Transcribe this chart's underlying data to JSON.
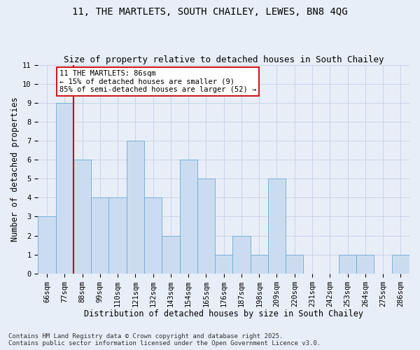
{
  "title1": "11, THE MARTLETS, SOUTH CHAILEY, LEWES, BN8 4QG",
  "title2": "Size of property relative to detached houses in South Chailey",
  "xlabel": "Distribution of detached houses by size in South Chailey",
  "ylabel": "Number of detached properties",
  "categories": [
    "66sqm",
    "77sqm",
    "88sqm",
    "99sqm",
    "110sqm",
    "121sqm",
    "132sqm",
    "143sqm",
    "154sqm",
    "165sqm",
    "176sqm",
    "187sqm",
    "198sqm",
    "209sqm",
    "220sqm",
    "231sqm",
    "242sqm",
    "253sqm",
    "264sqm",
    "275sqm",
    "286sqm"
  ],
  "values": [
    3,
    9,
    6,
    4,
    4,
    7,
    4,
    2,
    6,
    5,
    1,
    2,
    1,
    5,
    1,
    0,
    0,
    1,
    1,
    0,
    1
  ],
  "bar_color": "#ccdcf0",
  "bar_edge_color": "#6aaad4",
  "red_line_index": 2,
  "annotation_line1": "11 THE MARTLETS: 86sqm",
  "annotation_line2": "← 15% of detached houses are smaller (9)",
  "annotation_line3": "85% of semi-detached houses are larger (52) →",
  "annotation_box_color": "#ffffff",
  "annotation_box_edge_color": "#cc0000",
  "red_line_color": "#cc0000",
  "ylim": [
    0,
    11
  ],
  "yticks": [
    0,
    1,
    2,
    3,
    4,
    5,
    6,
    7,
    8,
    9,
    10,
    11
  ],
  "grid_color": "#c8d4e8",
  "background_color": "#e8eef8",
  "footer_line1": "Contains HM Land Registry data © Crown copyright and database right 2025.",
  "footer_line2": "Contains public sector information licensed under the Open Government Licence v3.0.",
  "title1_fontsize": 10,
  "title2_fontsize": 9,
  "xlabel_fontsize": 8.5,
  "ylabel_fontsize": 8.5,
  "tick_fontsize": 7.5,
  "annotation_fontsize": 7.5,
  "footer_fontsize": 6.5
}
